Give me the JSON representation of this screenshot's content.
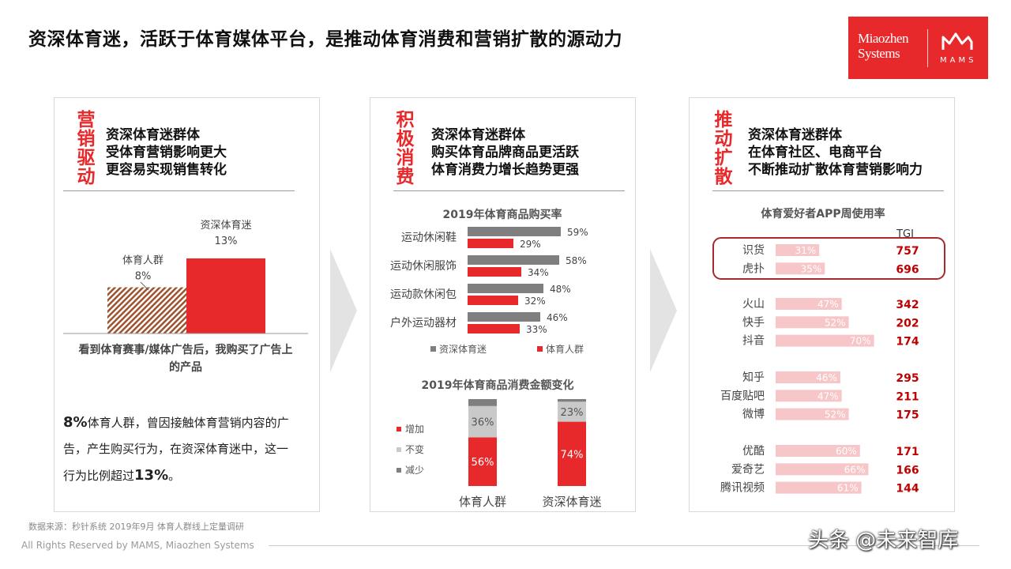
{
  "title": "资深体育迷，活跃于体育媒体平台，是推动体育消费和营销扩散的源动力",
  "logo": {
    "brand_line1": "Miaozhen",
    "brand_line2": "Systems",
    "mark": "MAMS"
  },
  "panels": [
    {
      "head": "营销驱动",
      "lines": [
        "资深体育迷群体",
        "受体育营销影响更大",
        "更容易实现销售转化"
      ]
    },
    {
      "head": "积极消费",
      "lines": [
        "资深体育迷群体",
        "购买体育品牌商品更活跃",
        "体育消费力增长趋势更强"
      ]
    },
    {
      "head": "推动扩散",
      "lines": [
        "资深体育迷群体",
        "在体育社区、电商平台",
        "不断推动扩散体育营销影响力"
      ]
    }
  ],
  "note": {
    "pct1": "8%",
    "text1": "体育人群，曾因接触体育营销内容的广",
    "text2": "告，产生购买行为，在资深体育迷中，这一",
    "text3": "行为比例超过",
    "pct2": "13%",
    "tail": "。"
  },
  "footer": {
    "source": "数据来源：秒针系统 2019年9月 体育人群线上定量调研",
    "copyright": "All Rights Reserved by MAMS, Miaozhen Systems"
  },
  "watermark": "头条 @未来智库",
  "colors": {
    "red": "#e8292b",
    "gray": "#7f7f7f",
    "lightgray": "#c9c9c9",
    "pink": "#f7c6c9",
    "hatch": "#a0522d"
  },
  "chart_data": [
    {
      "type": "bar",
      "title": "",
      "xlabel": "看到体育赛事/媒体广告后，我购买了广告上的产品",
      "categories": [
        "体育人群, 8%",
        "资深体育迷, 13%"
      ],
      "values": [
        8,
        13
      ],
      "ylim": [
        0,
        16
      ]
    },
    {
      "type": "bar",
      "orientation": "horizontal",
      "title": "2019年体育商品购买率",
      "categories": [
        "运动休闲鞋",
        "运动休闲服饰",
        "运动款休闲包",
        "户外运动器材"
      ],
      "series": [
        {
          "name": "资深体育迷",
          "values": [
            59,
            58,
            48,
            46
          ],
          "labels": [
            "59%",
            "58%",
            "48%",
            "46%"
          ],
          "color": "#7f7f7f"
        },
        {
          "name": "体育人群",
          "values": [
            29,
            34,
            32,
            33
          ],
          "labels": [
            "29%",
            "34%",
            "32%",
            "33%"
          ],
          "color": "#e8292b"
        }
      ],
      "legend": "bottom"
    },
    {
      "type": "bar",
      "stacked": true,
      "title": "2019年体育商品消费金额变化",
      "categories": [
        "体育人群",
        "资深体育迷"
      ],
      "series": [
        {
          "name": "增加",
          "values": [
            56,
            74
          ],
          "labels": [
            "56%",
            "74%"
          ],
          "color": "#e8292b"
        },
        {
          "name": "不变",
          "values": [
            36,
            23
          ],
          "labels": [
            "36%",
            "23%"
          ],
          "color": "#c9c9c9"
        },
        {
          "name": "减少",
          "values": [
            8,
            3
          ],
          "labels": [
            "",
            ""
          ],
          "color": "#7f7f7f"
        }
      ],
      "legend": "left"
    },
    {
      "type": "bar",
      "orientation": "horizontal",
      "title": "体育爱好者APP周使用率",
      "tgi_label": "TGI",
      "groups": [
        {
          "items": [
            {
              "app": "识货",
              "value": 31,
              "label": "31%",
              "tgi": "757"
            },
            {
              "app": "虎扑",
              "value": 35,
              "label": "35%",
              "tgi": "696"
            }
          ],
          "highlight": true
        },
        {
          "items": [
            {
              "app": "火山",
              "value": 47,
              "label": "47%",
              "tgi": "342"
            },
            {
              "app": "快手",
              "value": 52,
              "label": "52%",
              "tgi": "202"
            },
            {
              "app": "抖音",
              "value": 70,
              "label": "70%",
              "tgi": "174"
            }
          ]
        },
        {
          "items": [
            {
              "app": "知乎",
              "value": 46,
              "label": "46%",
              "tgi": "295"
            },
            {
              "app": "百度贴吧",
              "value": 47,
              "label": "47%",
              "tgi": "211"
            },
            {
              "app": "微博",
              "value": 52,
              "label": "52%",
              "tgi": "175"
            }
          ]
        },
        {
          "items": [
            {
              "app": "优酷",
              "value": 60,
              "label": "60%",
              "tgi": "171"
            },
            {
              "app": "爱奇艺",
              "value": 66,
              "label": "66%",
              "tgi": "166"
            },
            {
              "app": "腾讯视频",
              "value": 61,
              "label": "61%",
              "tgi": "144"
            }
          ]
        }
      ]
    }
  ]
}
